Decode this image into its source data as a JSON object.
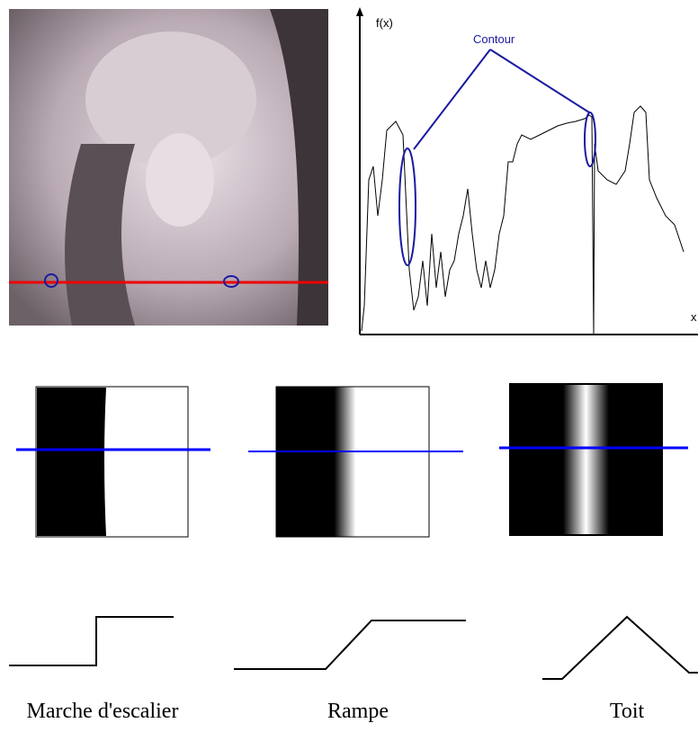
{
  "graph": {
    "y_label": "f(x)",
    "annotation": "Contour",
    "x_label": "x"
  },
  "edges": [
    {
      "label": "Marche d'escalier"
    },
    {
      "label": "Rampe"
    },
    {
      "label": "Toit"
    }
  ]
}
